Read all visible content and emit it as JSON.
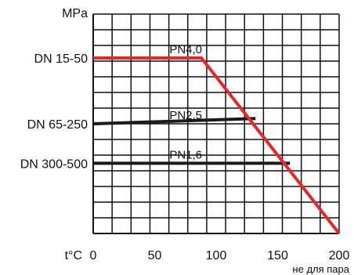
{
  "chart_data": {
    "type": "line",
    "ylabel": "MPa",
    "xlabel": "t°C",
    "x_note": "не для пара",
    "xlim": [
      0,
      200
    ],
    "ylim": [
      0,
      5.0
    ],
    "x_ticks": [
      0,
      50,
      100,
      150,
      200
    ],
    "x_tick_labels": [
      "0",
      "50",
      "100",
      "150",
      "200"
    ],
    "y_category_labels": [
      {
        "label": "DN 15-50",
        "y": 4.0
      },
      {
        "label": "DN 65-250",
        "y": 2.5
      },
      {
        "label": "DN 300-500",
        "y": 1.6
      }
    ],
    "grid": true,
    "series": [
      {
        "name": "PN4,0",
        "color": "#e8262a",
        "width": 4,
        "points": [
          [
            0,
            4.0
          ],
          [
            88,
            4.0
          ],
          [
            200,
            0.0
          ]
        ]
      },
      {
        "name": "PN2,5",
        "color": "#1a1a1a",
        "width": 4,
        "points": [
          [
            0,
            2.5
          ],
          [
            132,
            2.62
          ]
        ]
      },
      {
        "name": "PN1,6",
        "color": "#1a1a1a",
        "width": 4,
        "points": [
          [
            0,
            1.6
          ],
          [
            160,
            1.6
          ]
        ]
      }
    ]
  }
}
